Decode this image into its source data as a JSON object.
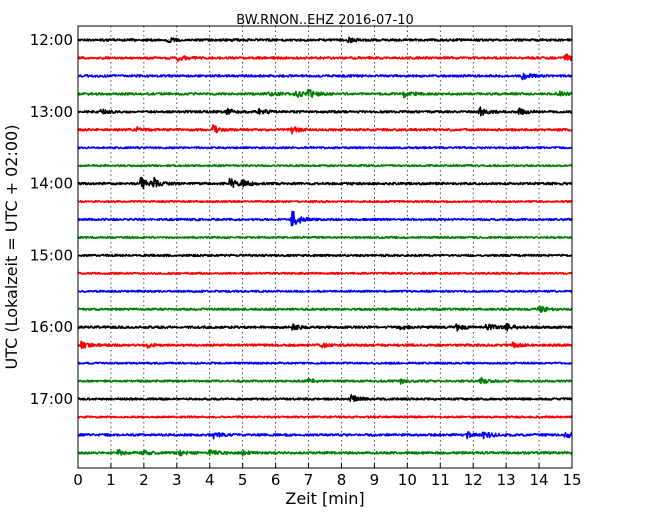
{
  "chart_data": {
    "type": "line",
    "title": "BW.RNON..EHZ 2016-07-10",
    "xlabel": "Zeit  [min]",
    "ylabel": "UTC (Lokalzeit = UTC + 02:00)",
    "xlim": [
      0,
      15
    ],
    "xticks": [
      0,
      1,
      2,
      3,
      4,
      5,
      6,
      7,
      8,
      9,
      10,
      11,
      12,
      13,
      14,
      15
    ],
    "xtick_labels": [
      "0",
      "1",
      "2",
      "3",
      "4",
      "5",
      "6",
      "7",
      "8",
      "9",
      "10",
      "11",
      "12",
      "13",
      "14",
      "15"
    ],
    "ytick_labels": [
      "12:00",
      "13:00",
      "14:00",
      "15:00",
      "16:00",
      "17:00"
    ],
    "grid": true,
    "colors": [
      "#000000",
      "#ff0000",
      "#0000ff",
      "#008000"
    ],
    "traces": [
      {
        "start": "12:00",
        "color": "#000000",
        "noise": 1.0,
        "events": [
          {
            "t": 2.7,
            "amp": 2
          },
          {
            "t": 8.2,
            "amp": 2
          }
        ]
      },
      {
        "start": "12:15",
        "color": "#ff0000",
        "noise": 1.0,
        "events": [
          {
            "t": 3.0,
            "amp": 3
          },
          {
            "t": 14.8,
            "amp": 4
          }
        ]
      },
      {
        "start": "12:30",
        "color": "#0000ff",
        "noise": 1.0,
        "events": [
          {
            "t": 13.5,
            "amp": 3
          }
        ]
      },
      {
        "start": "12:45",
        "color": "#008000",
        "noise": 1.0,
        "events": [
          {
            "t": 5.8,
            "amp": 2
          },
          {
            "t": 6.6,
            "amp": 4
          },
          {
            "t": 7.0,
            "amp": 4
          },
          {
            "t": 9.9,
            "amp": 3
          },
          {
            "t": 14.6,
            "amp": 2
          }
        ]
      },
      {
        "start": "13:00",
        "color": "#000000",
        "noise": 1.0,
        "events": [
          {
            "t": 0.7,
            "amp": 2
          },
          {
            "t": 4.5,
            "amp": 3
          },
          {
            "t": 5.5,
            "amp": 3
          },
          {
            "t": 12.2,
            "amp": 4
          },
          {
            "t": 13.4,
            "amp": 3
          }
        ]
      },
      {
        "start": "13:15",
        "color": "#ff0000",
        "noise": 1.0,
        "events": [
          {
            "t": 1.8,
            "amp": 2
          },
          {
            "t": 4.1,
            "amp": 4
          },
          {
            "t": 6.5,
            "amp": 3
          }
        ]
      },
      {
        "start": "13:30",
        "color": "#0000ff",
        "noise": 0.8,
        "events": []
      },
      {
        "start": "13:45",
        "color": "#008000",
        "noise": 0.8,
        "events": []
      },
      {
        "start": "14:00",
        "color": "#000000",
        "noise": 1.0,
        "events": [
          {
            "t": 1.9,
            "amp": 6
          },
          {
            "t": 2.3,
            "amp": 5
          },
          {
            "t": 4.6,
            "amp": 5
          },
          {
            "t": 5.0,
            "amp": 4
          }
        ]
      },
      {
        "start": "14:15",
        "color": "#ff0000",
        "noise": 0.8,
        "events": []
      },
      {
        "start": "14:30",
        "color": "#0000ff",
        "noise": 0.9,
        "events": [
          {
            "t": 6.5,
            "amp": 9
          }
        ]
      },
      {
        "start": "14:45",
        "color": "#008000",
        "noise": 0.8,
        "events": []
      },
      {
        "start": "15:00",
        "color": "#000000",
        "noise": 0.9,
        "events": []
      },
      {
        "start": "15:15",
        "color": "#ff0000",
        "noise": 0.8,
        "events": []
      },
      {
        "start": "15:30",
        "color": "#0000ff",
        "noise": 0.8,
        "events": []
      },
      {
        "start": "15:45",
        "color": "#008000",
        "noise": 0.9,
        "events": [
          {
            "t": 14.0,
            "amp": 3
          }
        ]
      },
      {
        "start": "16:00",
        "color": "#000000",
        "noise": 1.0,
        "events": [
          {
            "t": 6.5,
            "amp": 3
          },
          {
            "t": 9.8,
            "amp": 2
          },
          {
            "t": 11.5,
            "amp": 3
          },
          {
            "t": 12.4,
            "amp": 3
          },
          {
            "t": 13.0,
            "amp": 3
          }
        ]
      },
      {
        "start": "16:15",
        "color": "#ff0000",
        "noise": 1.0,
        "events": [
          {
            "t": 0.1,
            "amp": 3
          },
          {
            "t": 2.1,
            "amp": 2
          },
          {
            "t": 7.4,
            "amp": 2
          },
          {
            "t": 13.2,
            "amp": 2
          }
        ]
      },
      {
        "start": "16:30",
        "color": "#0000ff",
        "noise": 0.8,
        "events": []
      },
      {
        "start": "16:45",
        "color": "#008000",
        "noise": 0.9,
        "events": [
          {
            "t": 7.0,
            "amp": 2
          },
          {
            "t": 9.8,
            "amp": 2
          },
          {
            "t": 12.2,
            "amp": 3
          }
        ]
      },
      {
        "start": "17:00",
        "color": "#000000",
        "noise": 0.9,
        "events": [
          {
            "t": 8.3,
            "amp": 4
          }
        ]
      },
      {
        "start": "17:15",
        "color": "#ff0000",
        "noise": 0.8,
        "events": []
      },
      {
        "start": "17:30",
        "color": "#0000ff",
        "noise": 1.0,
        "events": [
          {
            "t": 4.1,
            "amp": 3
          },
          {
            "t": 11.8,
            "amp": 3
          },
          {
            "t": 12.3,
            "amp": 4
          },
          {
            "t": 14.8,
            "amp": 3
          }
        ]
      },
      {
        "start": "17:45",
        "color": "#008000",
        "noise": 1.0,
        "events": [
          {
            "t": 1.2,
            "amp": 3
          },
          {
            "t": 2.0,
            "amp": 2
          },
          {
            "t": 3.1,
            "amp": 2
          },
          {
            "t": 4.0,
            "amp": 3
          },
          {
            "t": 5.0,
            "amp": 2
          }
        ]
      }
    ]
  }
}
